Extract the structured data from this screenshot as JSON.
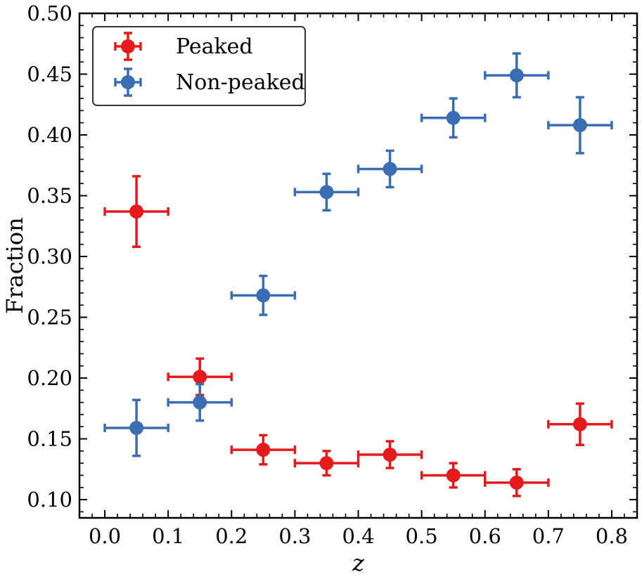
{
  "chart_data": {
    "type": "scatter",
    "xlabel": "z",
    "ylabel": "Fraction",
    "xlim": [
      -0.04,
      0.84
    ],
    "ylim": [
      0.085,
      0.5
    ],
    "x_ticks": [
      0.0,
      0.1,
      0.2,
      0.3,
      0.4,
      0.5,
      0.6,
      0.7,
      0.8
    ],
    "x_tick_labels": [
      "0.0",
      "0.1",
      "0.2",
      "0.3",
      "0.4",
      "0.5",
      "0.6",
      "0.7",
      "0.8"
    ],
    "y_ticks": [
      0.1,
      0.15,
      0.2,
      0.25,
      0.3,
      0.35,
      0.4,
      0.45,
      0.5
    ],
    "y_tick_labels": [
      "0.10",
      "0.15",
      "0.20",
      "0.25",
      "0.30",
      "0.35",
      "0.40",
      "0.45",
      "0.50"
    ],
    "grid": false,
    "legend_position": "top-left",
    "x_error": 0.05,
    "series": [
      {
        "name": "Peaked",
        "color": "#e41a1c",
        "x": [
          0.05,
          0.15,
          0.25,
          0.35,
          0.45,
          0.55,
          0.65,
          0.75
        ],
        "y": [
          0.337,
          0.201,
          0.141,
          0.13,
          0.137,
          0.12,
          0.114,
          0.162
        ],
        "y_err": [
          0.029,
          0.015,
          0.012,
          0.01,
          0.011,
          0.01,
          0.011,
          0.017
        ]
      },
      {
        "name": "Non-peaked",
        "color": "#3a6db4",
        "x": [
          0.05,
          0.15,
          0.25,
          0.35,
          0.45,
          0.55,
          0.65,
          0.75
        ],
        "y": [
          0.159,
          0.18,
          0.268,
          0.353,
          0.372,
          0.414,
          0.449,
          0.408
        ],
        "y_err": [
          0.023,
          0.015,
          0.016,
          0.015,
          0.015,
          0.016,
          0.018,
          0.023
        ]
      }
    ]
  }
}
